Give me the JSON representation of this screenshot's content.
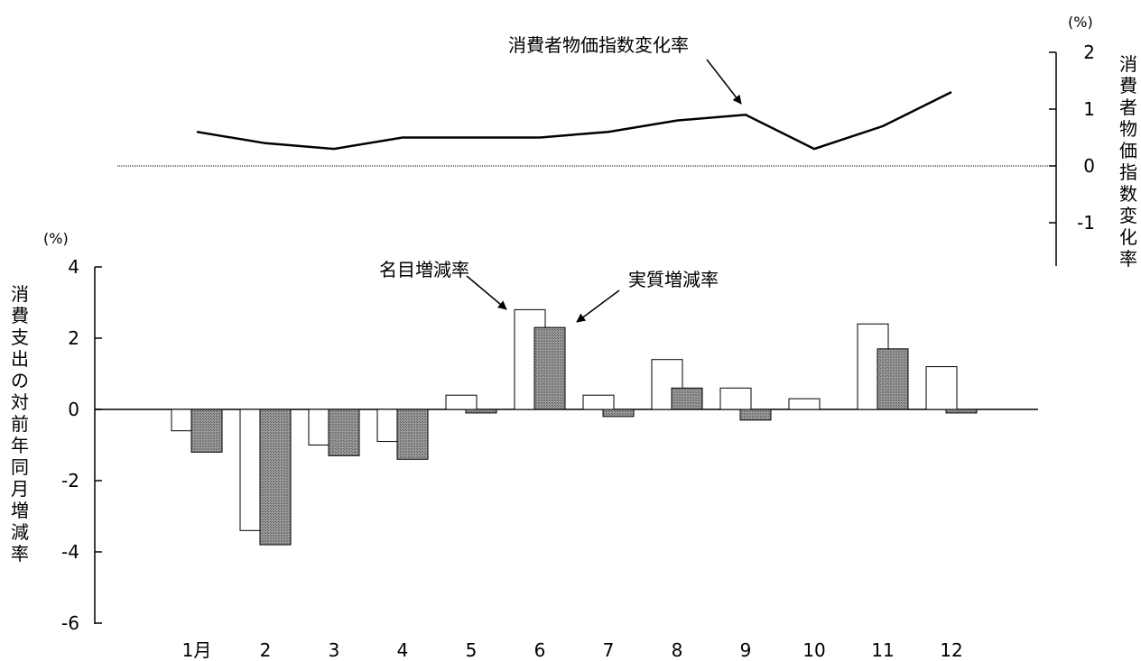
{
  "chart_data": [
    {
      "type": "line",
      "name": "cpi-change-chart",
      "unit_label": "(%)",
      "ylabel_chars": [
        "消",
        "費",
        "者",
        "物",
        "価",
        "指",
        "数",
        "変",
        "化",
        "率"
      ],
      "ylim": [
        -1.5,
        2
      ],
      "yticks": [
        2,
        1,
        0,
        -1
      ],
      "x": [
        "1月",
        "2",
        "3",
        "4",
        "5",
        "6",
        "7",
        "8",
        "9",
        "10",
        "11",
        "12"
      ],
      "series": [
        {
          "name": "消費者物価指数変化率",
          "values": [
            0.6,
            0.4,
            0.3,
            0.5,
            0.5,
            0.5,
            0.6,
            0.8,
            0.9,
            0.3,
            0.7,
            1.3
          ],
          "color": "#000000"
        }
      ],
      "annotations": [
        {
          "text": "消費者物価指数変化率",
          "points_to_month": "9"
        }
      ]
    },
    {
      "type": "bar",
      "name": "consumption-change-chart",
      "unit_label": "(%)",
      "ylabel_chars": [
        "消",
        "費",
        "支",
        "出",
        "の",
        "対",
        "前",
        "年",
        "同",
        "月",
        "増",
        "減",
        "率"
      ],
      "ylim": [
        -6,
        4
      ],
      "yticks": [
        4,
        2,
        0,
        -2,
        -4,
        -6
      ],
      "categories": [
        "1月",
        "2",
        "3",
        "4",
        "5",
        "6",
        "7",
        "8",
        "9",
        "10",
        "11",
        "12"
      ],
      "series": [
        {
          "name": "名目増減率",
          "values": [
            -0.6,
            -3.4,
            -1.0,
            -0.9,
            0.4,
            2.8,
            0.4,
            1.4,
            0.6,
            0.3,
            2.4,
            1.2
          ],
          "color": "#ffffff"
        },
        {
          "name": "実質増減率",
          "values": [
            -1.2,
            -3.8,
            -1.3,
            -1.4,
            -0.1,
            2.3,
            -0.2,
            0.6,
            -0.3,
            0.0,
            1.7,
            -0.1
          ],
          "color": "#8c8c8c"
        }
      ],
      "annotations": [
        {
          "text": "名目増減率",
          "points_to_month": "6"
        },
        {
          "text": "実質増減率",
          "points_to_month": "6"
        }
      ]
    }
  ]
}
